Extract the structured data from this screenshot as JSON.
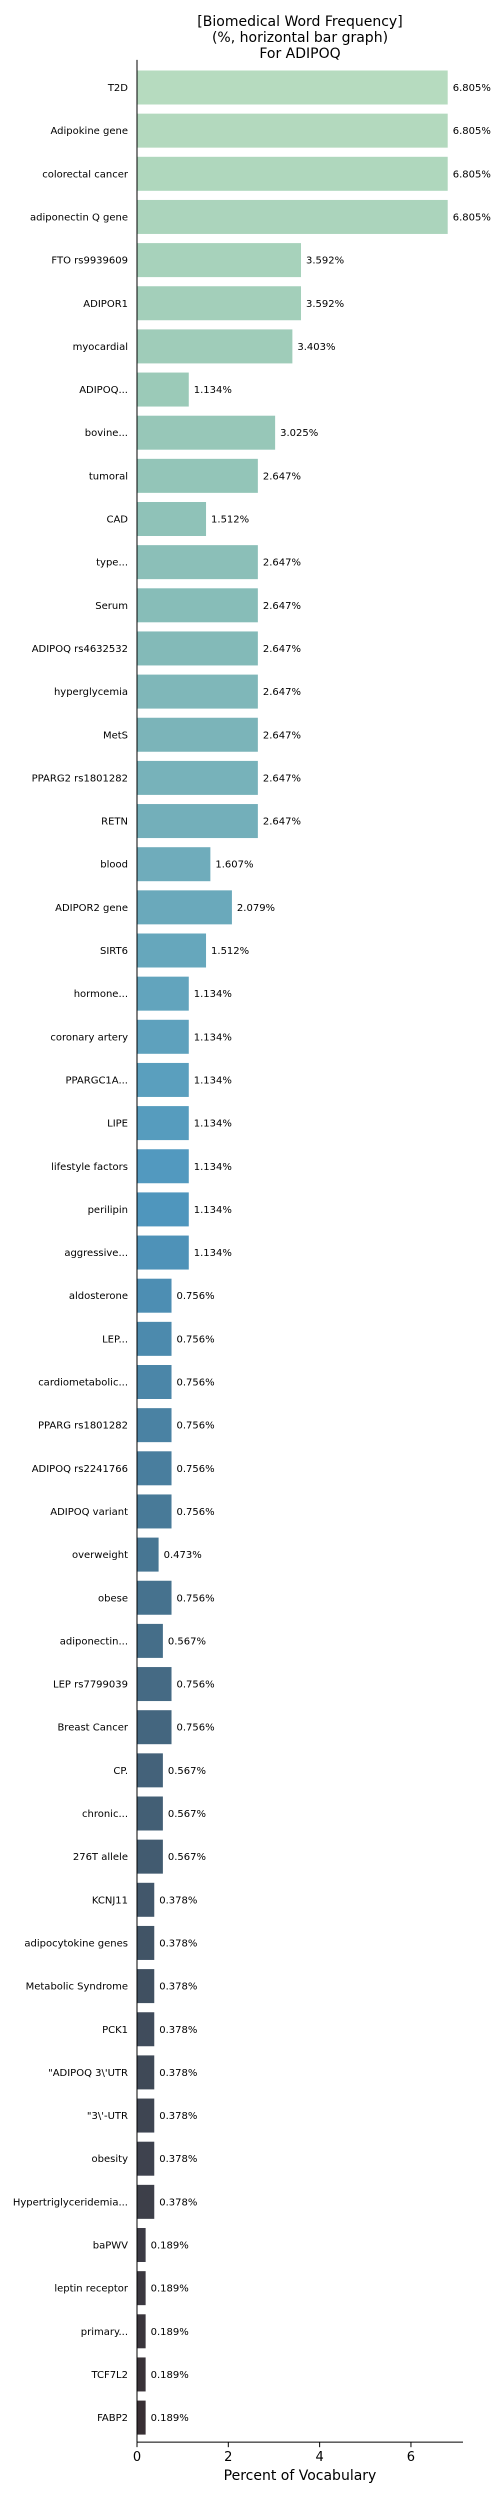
{
  "chart_data": {
    "type": "bar",
    "orientation": "horizontal",
    "title_lines": [
      "[Biomedical Word Frequency]",
      "(%, horizontal bar graph)",
      "For ADIPOQ"
    ],
    "xlabel": "Percent of Vocabulary",
    "ylabel": "",
    "xlim": [
      0,
      7.14
    ],
    "xticks": [
      0,
      2,
      4,
      6
    ],
    "grid": false,
    "value_suffix": "%",
    "categories": [
      "T2D",
      "Adipokine gene",
      "colorectal cancer",
      "adiponectin Q gene",
      "FTO rs9939609",
      "ADIPOR1",
      "myocardial",
      "ADIPOQ...",
      "bovine...",
      "tumoral",
      "CAD",
      "type...",
      "Serum",
      "ADIPOQ rs4632532",
      "hyperglycemia",
      "MetS",
      "PPARG2 rs1801282",
      "RETN",
      "blood",
      "ADIPOR2 gene",
      "SIRT6",
      "hormone...",
      "coronary artery",
      "PPARGC1A...",
      "LIPE",
      "lifestyle factors",
      "perilipin",
      "aggressive...",
      "aldosterone",
      "LEP...",
      "cardiometabolic...",
      "PPARG rs1801282",
      "ADIPOQ rs2241766",
      "ADIPOQ variant",
      "overweight",
      "obese",
      "adiponectin...",
      "LEP rs7799039",
      "Breast Cancer",
      "CP.",
      "chronic...",
      "276T allele",
      "KCNJ11",
      "adipocytokine genes",
      "Metabolic Syndrome",
      "PCK1",
      "\"ADIPOQ 3\\'UTR",
      "\"3\\'-UTR",
      "obesity",
      "Hypertriglyceridemia...",
      "baPWV",
      "leptin receptor",
      "primary...",
      "TCF7L2",
      "FABP2"
    ],
    "values": [
      6.805,
      6.805,
      6.805,
      6.805,
      3.592,
      3.592,
      3.403,
      1.134,
      3.025,
      2.647,
      1.512,
      2.647,
      2.647,
      2.647,
      2.647,
      2.647,
      2.647,
      2.647,
      1.607,
      2.079,
      1.512,
      1.134,
      1.134,
      1.134,
      1.134,
      1.134,
      1.134,
      1.134,
      0.756,
      0.756,
      0.756,
      0.756,
      0.756,
      0.756,
      0.473,
      0.756,
      0.567,
      0.756,
      0.756,
      0.567,
      0.567,
      0.567,
      0.378,
      0.378,
      0.378,
      0.378,
      0.378,
      0.378,
      0.378,
      0.378,
      0.189,
      0.189,
      0.189,
      0.189,
      0.189
    ],
    "colors": [
      "#b6dbbf",
      "#b3d9be",
      "#afd7bd",
      "#abd4bc",
      "#a7d2bb",
      "#a3cfba",
      "#9fccb9",
      "#9bcab8",
      "#97c7b8",
      "#93c5b8",
      "#8fc2b8",
      "#8bbfb8",
      "#87bdb8",
      "#83bab8",
      "#7fb7b9",
      "#7bb4b9",
      "#77b2ba",
      "#73afba",
      "#6facbb",
      "#6aa9bb",
      "#66a7bc",
      "#62a4bd",
      "#5ea1bd",
      "#5a9fbe",
      "#569cbe",
      "#5299bf",
      "#4f96bd",
      "#4e92b8",
      "#4d8eb3",
      "#4c8aad",
      "#4b86a8",
      "#4a82a3",
      "#497e9e",
      "#487a98",
      "#477693",
      "#46728e",
      "#456e89",
      "#456a84",
      "#44667f",
      "#44627a",
      "#435f75",
      "#425b70",
      "#42576b",
      "#415466",
      "#405061",
      "#404c5c",
      "#3f4957",
      "#3e4552",
      "#3e424e",
      "#3d3f49",
      "#3c3b45",
      "#3b3840",
      "#3a353c",
      "#393238",
      "#382f34"
    ]
  }
}
